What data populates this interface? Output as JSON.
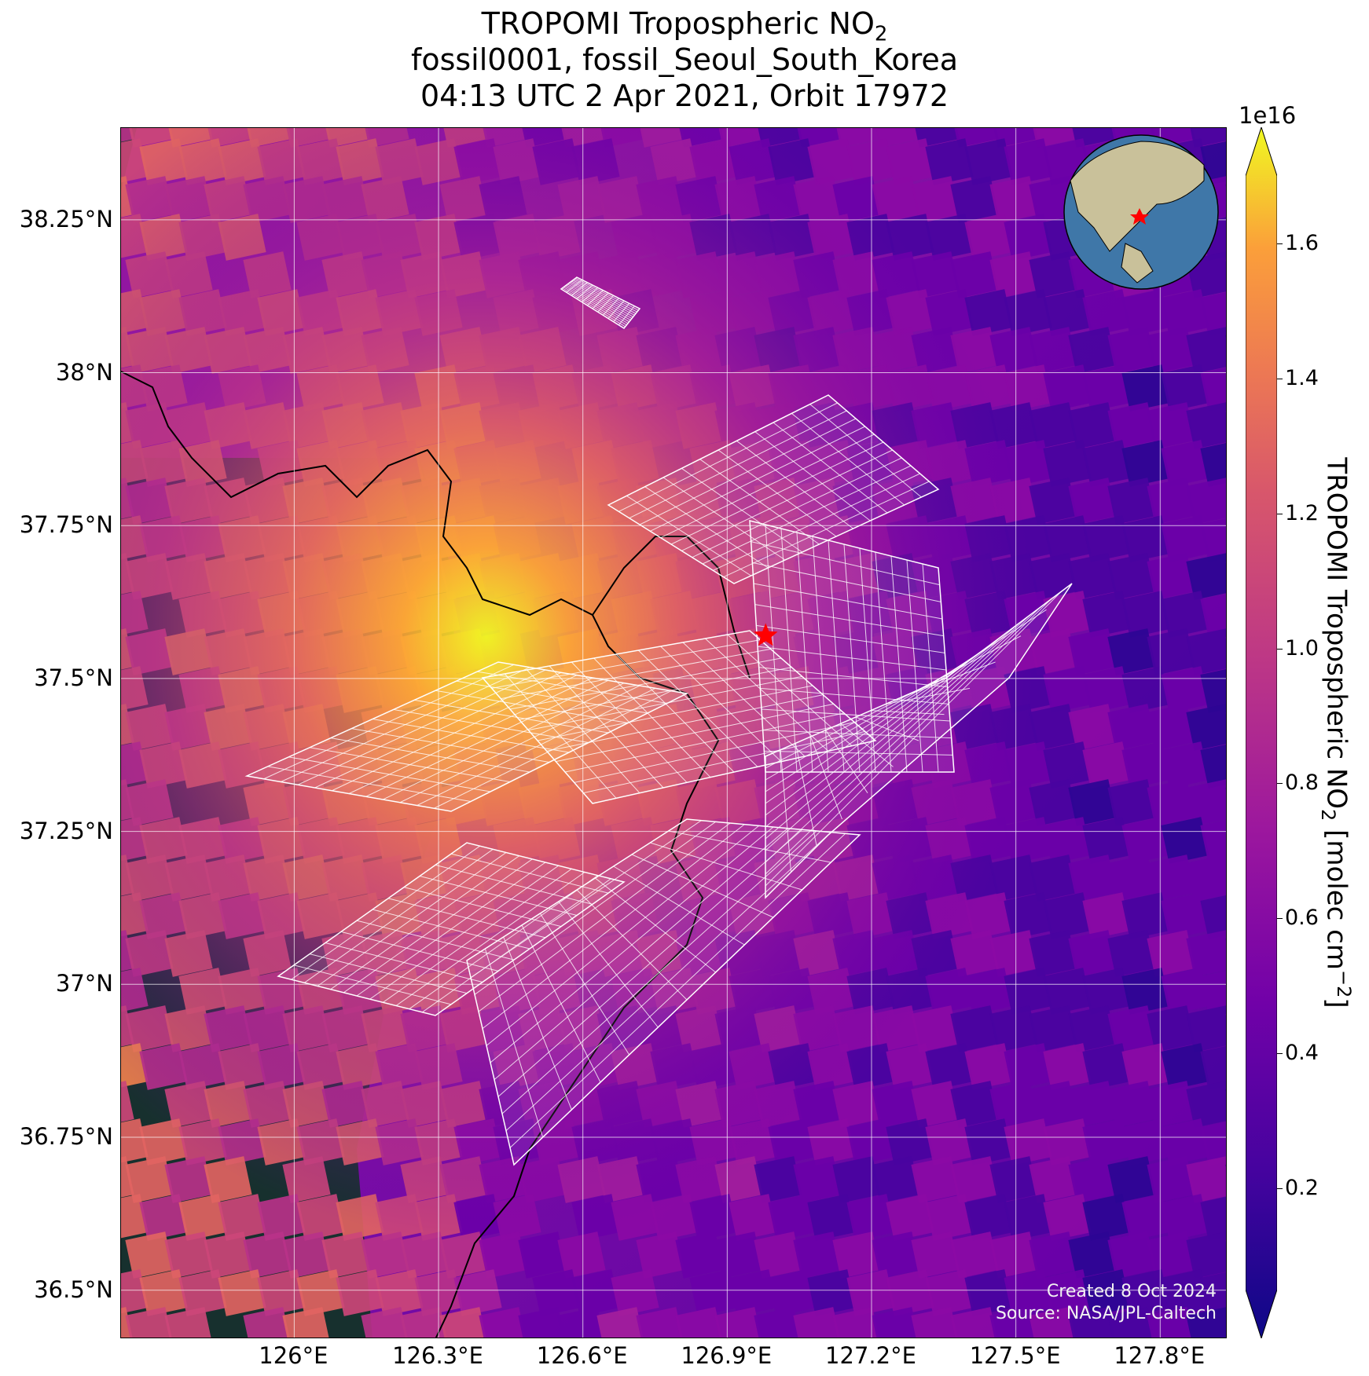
{
  "title": {
    "line1": "TROPOMI Tropospheric NO",
    "line1_sub": "2",
    "line2": "fossil0001, fossil_Seoul_South_Korea",
    "line3": "04:13 UTC 2 Apr 2021, Orbit 17972"
  },
  "axes": {
    "lat_labels": [
      "38.25°N",
      "38°N",
      "37.75°N",
      "37.5°N",
      "37.25°N",
      "37°N",
      "36.75°N",
      "36.5°N"
    ],
    "lat_values": [
      38.25,
      38.0,
      37.75,
      37.5,
      37.25,
      37.0,
      36.75,
      36.5
    ],
    "lon_labels": [
      "126°E",
      "126.3°E",
      "126.6°E",
      "126.9°E",
      "127.2°E",
      "127.5°E",
      "127.8°E"
    ],
    "lon_values": [
      126.0,
      126.3,
      126.6,
      126.9,
      127.2,
      127.5,
      127.8
    ],
    "lat_range": [
      36.42,
      38.4
    ],
    "lon_range": [
      125.64,
      127.94
    ]
  },
  "colorbar": {
    "colormap": "plasma",
    "exponent": "1e16",
    "label": "TROPOMI Tropospheric NO",
    "label_sub": "2",
    "label_units": " [molec cm",
    "label_units_sup": "−2",
    "label_end": "]",
    "ticks": [
      "0.2",
      "0.4",
      "0.6",
      "0.8",
      "1.0",
      "1.2",
      "1.4",
      "1.6"
    ],
    "tick_values": [
      0.2,
      0.4,
      0.6,
      0.8,
      1.0,
      1.2,
      1.4,
      1.6
    ],
    "range": [
      0.05,
      1.7
    ],
    "extend": "both"
  },
  "target": {
    "name": "fossil_Seoul_South_Korea",
    "lat": 37.57,
    "lon": 126.98,
    "marker": "red-star",
    "color": "#ff0000"
  },
  "inset": {
    "type": "globe",
    "marker": "red-star"
  },
  "credits": {
    "created": "Created 8 Oct 2024",
    "source": "Source: NASA/JPL-Caltech"
  },
  "colors": {
    "high": "#f0f921",
    "low": "#0d0887",
    "sea": "#1a3a3a",
    "land": "#4a5a3a",
    "grid_line": "#ffffff",
    "marker": "#ff0000"
  }
}
